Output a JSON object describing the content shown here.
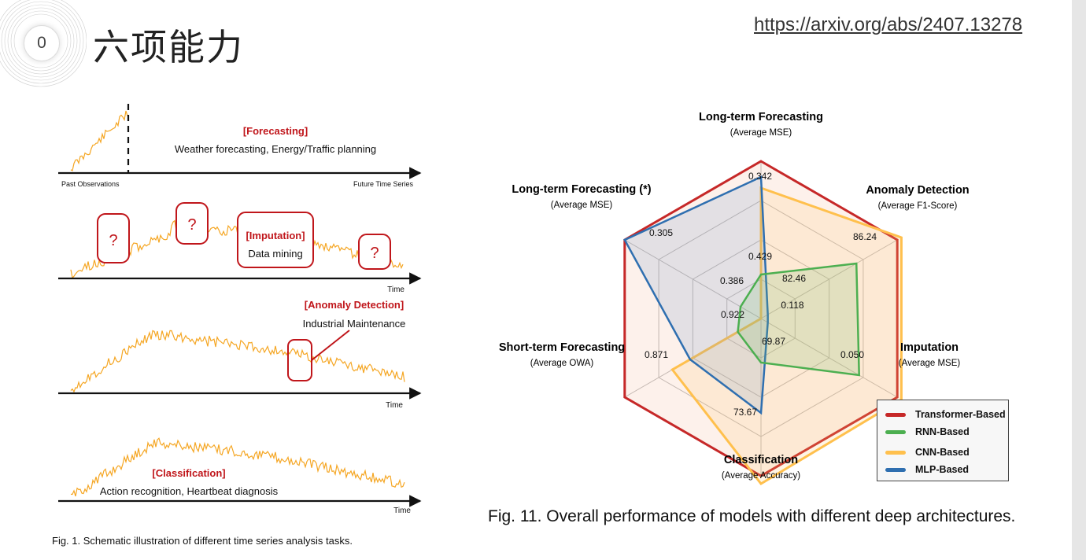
{
  "slide": {
    "number": "0",
    "title": "六项能力",
    "link": "https://arxiv.org/abs/2407.13278"
  },
  "left_figure": {
    "caption": "Fig. 1. Schematic illustration of different time series analysis tasks.",
    "forecasting": {
      "task": "[Forecasting]",
      "desc": "Weather forecasting, Energy/Traffic planning",
      "past_label": "Past Observations",
      "future_label": "Future Time Series"
    },
    "imputation": {
      "task": "[Imputation]",
      "desc": "Data mining",
      "q": "?",
      "time": "Time"
    },
    "anomaly": {
      "task": "[Anomaly Detection]",
      "desc": "Industrial Maintenance",
      "time": "Time"
    },
    "classification": {
      "task": "[Classification]",
      "desc": "Action recognition, Heartbeat diagnosis",
      "time": "Time"
    },
    "colors": {
      "series": "#f5a623",
      "task_label": "#c0161b",
      "axis": "#111111"
    }
  },
  "right_figure": {
    "caption": "Fig. 11. Overall performance of models with different deep architectures.",
    "axes": {
      "top": {
        "name": "Long-term Forecasting",
        "metric": "(Average MSE)"
      },
      "upper_right": {
        "name": "Anomaly Detection",
        "metric": "(Average F1-Score)"
      },
      "lower_right": {
        "name": "Imputation",
        "metric": "(Average MSE)"
      },
      "bottom": {
        "name": "Classification",
        "metric": "(Average Accuracy)"
      },
      "lower_left": {
        "name": "Short-term Forecasting",
        "metric": "(Average OWA)"
      },
      "upper_left": {
        "name": "Long-term Forecasting (*)",
        "metric": "(Average MSE)"
      }
    },
    "value_labels": {
      "top_outer": "0.342",
      "top_inner": "0.429",
      "upper_right_outer": "86.24",
      "upper_right_inner": "82.46",
      "lower_right_outer": "0.050",
      "lower_right_inner": "0.118",
      "bottom_outer": "73.67",
      "bottom_inner": "69.87",
      "lower_left_outer": "0.871",
      "lower_left_inner": "0.922",
      "upper_left_outer": "0.305",
      "upper_left_inner": "0.386"
    },
    "legend": [
      {
        "label": "Transformer-Based",
        "color": "#c62828"
      },
      {
        "label": "RNN-Based",
        "color": "#4caf50"
      },
      {
        "label": "CNN-Based",
        "color": "#ffc04d"
      },
      {
        "label": "MLP-Based",
        "color": "#2f6fb0"
      }
    ]
  }
}
